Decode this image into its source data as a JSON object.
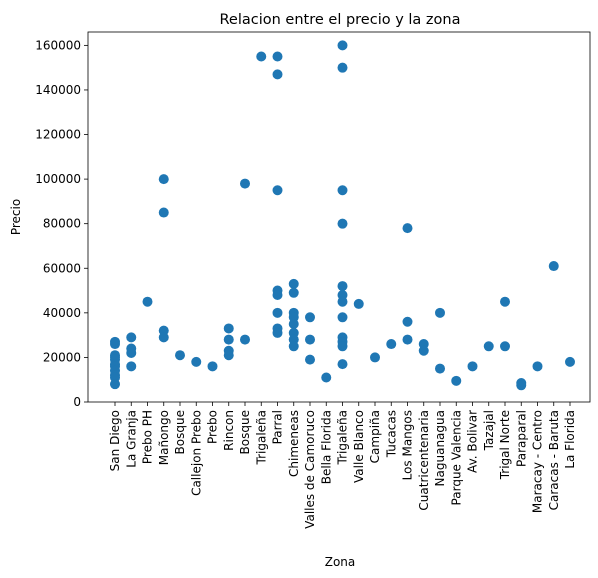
{
  "chart_data": {
    "type": "scatter",
    "title": "Relacion entre el precio y la zona",
    "xlabel": "Zona",
    "ylabel": "Precio",
    "ylim": [
      0,
      166000
    ],
    "yticks": [
      0,
      20000,
      40000,
      60000,
      80000,
      100000,
      120000,
      140000,
      160000
    ],
    "grid": false,
    "marker_color": "#1f77b4",
    "categories": [
      "San Diego",
      "La Granja",
      "Prebo PH",
      "Mañongo",
      "Bosque",
      "Callejon Prebo",
      "Prebo",
      "Rincon",
      "Bosque",
      "Trigaleña",
      "Parral",
      "Chimeneas",
      "Valles de Camoruco",
      "Bella Florida",
      "Trigaleña",
      "Valle Blanco",
      "Campiña",
      "Tucacas",
      "Los Mangos",
      "Cuatricentenaria",
      "Naguanagua",
      "Parque Valencia",
      "Av. Bolivar",
      "Tazajal",
      "Trigal Norte",
      "Paraparal",
      "Maracay - Centro",
      "Caracas - Baruta",
      "La Florida"
    ],
    "points": [
      {
        "x": "San Diego",
        "y": 27000
      },
      {
        "x": "San Diego",
        "y": 26000
      },
      {
        "x": "San Diego",
        "y": 21000
      },
      {
        "x": "San Diego",
        "y": 20000
      },
      {
        "x": "San Diego",
        "y": 19000
      },
      {
        "x": "San Diego",
        "y": 17000
      },
      {
        "x": "San Diego",
        "y": 16000
      },
      {
        "x": "San Diego",
        "y": 14000
      },
      {
        "x": "San Diego",
        "y": 12000
      },
      {
        "x": "San Diego",
        "y": 11000
      },
      {
        "x": "San Diego",
        "y": 8000
      },
      {
        "x": "La Granja",
        "y": 29000
      },
      {
        "x": "La Granja",
        "y": 24000
      },
      {
        "x": "La Granja",
        "y": 22000
      },
      {
        "x": "La Granja",
        "y": 16000
      },
      {
        "x": "Prebo PH",
        "y": 45000
      },
      {
        "x": "Mañongo",
        "y": 100000
      },
      {
        "x": "Mañongo",
        "y": 85000
      },
      {
        "x": "Mañongo",
        "y": 32000
      },
      {
        "x": "Mañongo",
        "y": 29000
      },
      {
        "x": "Bosque",
        "y": 21000
      },
      {
        "x": "Callejon Prebo",
        "y": 18000
      },
      {
        "x": "Prebo",
        "y": 16000
      },
      {
        "x": "Rincon",
        "y": 33000
      },
      {
        "x": "Rincon",
        "y": 28000
      },
      {
        "x": "Rincon",
        "y": 23000
      },
      {
        "x": "Rincon",
        "y": 21000
      },
      {
        "x": "Bosque (2)",
        "y": 98000
      },
      {
        "x": "Bosque (2)",
        "y": 28000
      },
      {
        "x": "Trigaleña",
        "y": 155000
      },
      {
        "x": "Parral",
        "y": 155000
      },
      {
        "x": "Parral",
        "y": 147000
      },
      {
        "x": "Parral",
        "y": 95000
      },
      {
        "x": "Parral",
        "y": 50000
      },
      {
        "x": "Parral",
        "y": 48000
      },
      {
        "x": "Parral",
        "y": 40000
      },
      {
        "x": "Parral",
        "y": 33000
      },
      {
        "x": "Parral",
        "y": 31000
      },
      {
        "x": "Chimeneas",
        "y": 53000
      },
      {
        "x": "Chimeneas",
        "y": 49000
      },
      {
        "x": "Chimeneas",
        "y": 40000
      },
      {
        "x": "Chimeneas",
        "y": 38000
      },
      {
        "x": "Chimeneas",
        "y": 35000
      },
      {
        "x": "Chimeneas",
        "y": 31000
      },
      {
        "x": "Chimeneas",
        "y": 28000
      },
      {
        "x": "Chimeneas",
        "y": 25000
      },
      {
        "x": "Valles de Camoruco",
        "y": 38000
      },
      {
        "x": "Valles de Camoruco",
        "y": 28000
      },
      {
        "x": "Valles de Camoruco",
        "y": 19000
      },
      {
        "x": "Bella Florida",
        "y": 11000
      },
      {
        "x": "Trigaleña (2)",
        "y": 160000
      },
      {
        "x": "Trigaleña (2)",
        "y": 150000
      },
      {
        "x": "Trigaleña (2)",
        "y": 95000
      },
      {
        "x": "Trigaleña (2)",
        "y": 80000
      },
      {
        "x": "Trigaleña (2)",
        "y": 52000
      },
      {
        "x": "Trigaleña (2)",
        "y": 48000
      },
      {
        "x": "Trigaleña (2)",
        "y": 45000
      },
      {
        "x": "Trigaleña (2)",
        "y": 38000
      },
      {
        "x": "Trigaleña (2)",
        "y": 29000
      },
      {
        "x": "Trigaleña (2)",
        "y": 27000
      },
      {
        "x": "Trigaleña (2)",
        "y": 25000
      },
      {
        "x": "Trigaleña (2)",
        "y": 17000
      },
      {
        "x": "Valle Blanco",
        "y": 44000
      },
      {
        "x": "Campiña",
        "y": 20000
      },
      {
        "x": "Tucacas",
        "y": 26000
      },
      {
        "x": "Los Mangos",
        "y": 78000
      },
      {
        "x": "Los Mangos",
        "y": 36000
      },
      {
        "x": "Los Mangos",
        "y": 28000
      },
      {
        "x": "Cuatricentenaria",
        "y": 26000
      },
      {
        "x": "Cuatricentenaria",
        "y": 23000
      },
      {
        "x": "Naguanagua",
        "y": 40000
      },
      {
        "x": "Naguanagua",
        "y": 15000
      },
      {
        "x": "Parque Valencia",
        "y": 9500
      },
      {
        "x": "Av. Bolivar",
        "y": 16000
      },
      {
        "x": "Tazajal",
        "y": 25000
      },
      {
        "x": "Trigal Norte",
        "y": 45000
      },
      {
        "x": "Trigal Norte",
        "y": 25000
      },
      {
        "x": "Paraparal",
        "y": 8500
      },
      {
        "x": "Paraparal",
        "y": 7500
      },
      {
        "x": "Maracay - Centro",
        "y": 16000
      },
      {
        "x": "Caracas - Baruta",
        "y": 61000
      },
      {
        "x": "La Florida",
        "y": 18000
      }
    ]
  }
}
